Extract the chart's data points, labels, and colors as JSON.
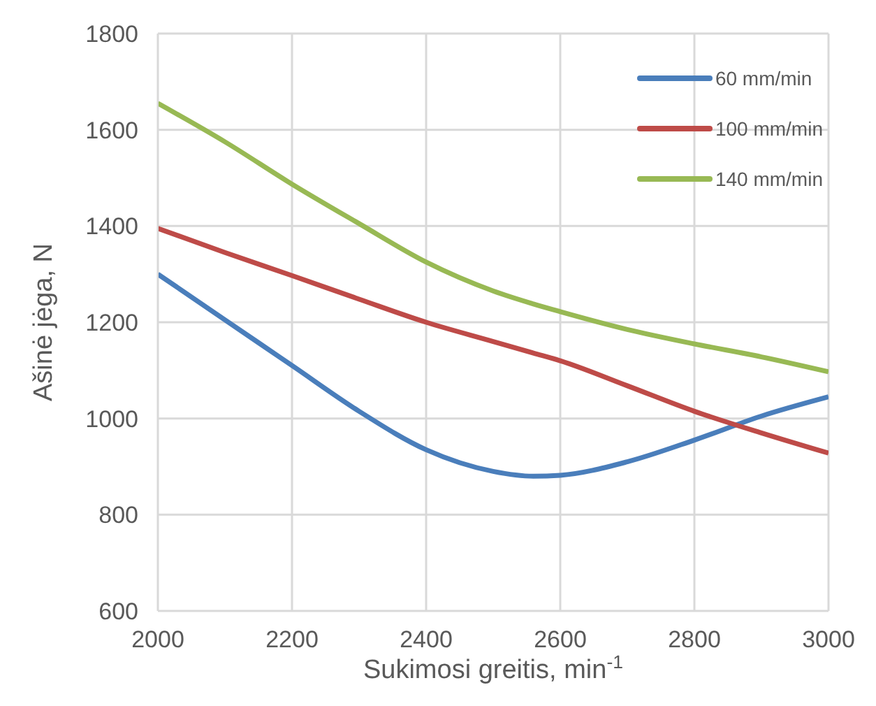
{
  "chart_data": {
    "type": "line",
    "xlabel": "Sukimosi greitis, min$^{-1}$",
    "ylabel": "Ašinė jėga, N",
    "x": [
      2000,
      2100,
      2200,
      2300,
      2400,
      2500,
      2560,
      2600,
      2700,
      2800,
      2900,
      3000
    ],
    "series": [
      {
        "name": "60 mm/min",
        "color": "#4a7ebb",
        "values": [
          1300,
          1205,
          1110,
          1015,
          935,
          890,
          880,
          882,
          910,
          955,
          1005,
          1045
        ]
      },
      {
        "name": "100 mm/min",
        "color": "#be4b48",
        "values": [
          1395,
          1345,
          1297,
          1248,
          1200,
          1160,
          1136,
          1120,
          1068,
          1015,
          970,
          928
        ]
      },
      {
        "name": "140 mm/min",
        "color": "#98b954",
        "values": [
          1655,
          1575,
          1487,
          1405,
          1325,
          1265,
          1238,
          1222,
          1185,
          1155,
          1128,
          1097
        ]
      }
    ],
    "xlim": [
      2000,
      3000
    ],
    "xticks": [
      2000,
      2200,
      2400,
      2600,
      2800,
      3000
    ],
    "ylim": [
      600,
      1800
    ],
    "yticks": [
      600,
      800,
      1000,
      1200,
      1400,
      1600,
      1800
    ],
    "grid": true,
    "legend": "top right",
    "marker": "none",
    "line_style": "solid"
  }
}
